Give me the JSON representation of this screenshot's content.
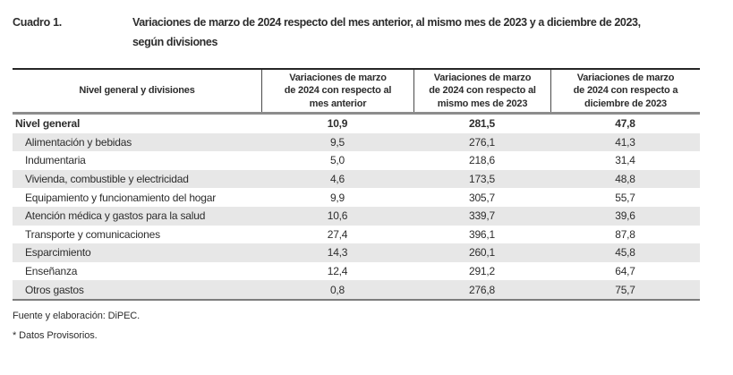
{
  "caption": {
    "label": "Cuadro 1.",
    "title_line1": "Variaciones de marzo de 2024 respecto del mes anterior, al mismo mes de 2023 y a diciembre de 2023,",
    "title_line2": "según divisiones"
  },
  "table": {
    "columns": [
      "Nivel general y divisiones",
      "Variaciones de marzo\nde 2024 con respecto al\nmes anterior",
      "Variaciones de marzo\nde 2024 con respecto al\nmismo mes de 2023",
      "Variaciones de marzo\nde 2024 con respecto a\ndiciembre de 2023"
    ],
    "rows": [
      {
        "label": "Nivel general",
        "level": "general",
        "values": [
          "10,9",
          "281,5",
          "47,8"
        ]
      },
      {
        "label": "Alimentación y bebidas",
        "level": "division",
        "values": [
          "9,5",
          "276,1",
          "41,3"
        ]
      },
      {
        "label": "Indumentaria",
        "level": "division",
        "values": [
          "5,0",
          "218,6",
          "31,4"
        ]
      },
      {
        "label": "Vivienda, combustible y electricidad",
        "level": "division",
        "values": [
          "4,6",
          "173,5",
          "48,8"
        ]
      },
      {
        "label": "Equipamiento y funcionamiento del hogar",
        "level": "division",
        "values": [
          "9,9",
          "305,7",
          "55,7"
        ]
      },
      {
        "label": "Atención médica y gastos para la salud",
        "level": "division",
        "values": [
          "10,6",
          "339,7",
          "39,6"
        ]
      },
      {
        "label": "Transporte y comunicaciones",
        "level": "division",
        "values": [
          "27,4",
          "396,1",
          "87,8"
        ]
      },
      {
        "label": "Esparcimiento",
        "level": "division",
        "values": [
          "14,3",
          "260,1",
          "45,8"
        ]
      },
      {
        "label": "Enseñanza",
        "level": "division",
        "values": [
          "12,4",
          "291,2",
          "64,7"
        ]
      },
      {
        "label": "Otros gastos",
        "level": "division",
        "values": [
          "0,8",
          "276,8",
          "75,7"
        ]
      }
    ]
  },
  "footnotes": [
    "Fuente y elaboración: DiPEC.",
    "* Datos Provisorios."
  ],
  "colors": {
    "row_shading": "#e7e7e7",
    "top_rule": "#262626",
    "header_rule": "#8c8c8c",
    "bottom_rule": "#7d7d7d",
    "text": "#2d2d2d"
  }
}
